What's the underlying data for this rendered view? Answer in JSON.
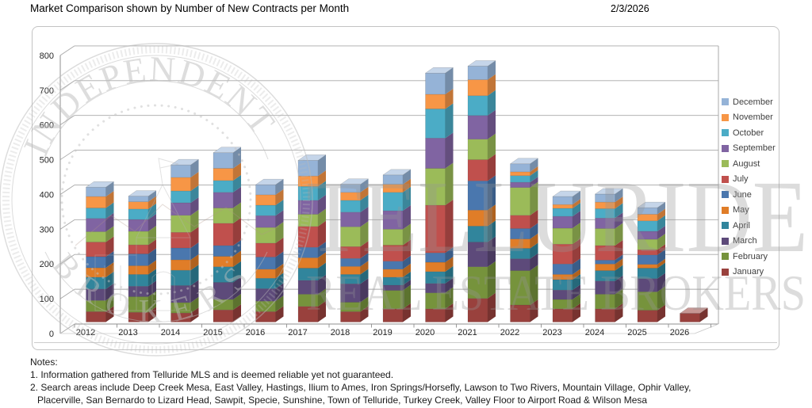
{
  "header": {
    "title": "Market Comparison shown by Number of New Contracts per Month",
    "date": "2/3/2026"
  },
  "chart_data": {
    "type": "bar",
    "stacked": true,
    "title": "Market Comparison shown by Number of New Contracts per Month",
    "categories": [
      "2012",
      "2013",
      "2014",
      "2015",
      "2016",
      "2017",
      "2018",
      "2019",
      "2020",
      "2021",
      "2022",
      "2023",
      "2024",
      "2025",
      "2026"
    ],
    "series": [
      {
        "name": "January",
        "color": "#99413D",
        "values": [
          30,
          28,
          26,
          35,
          30,
          45,
          30,
          38,
          38,
          68,
          49,
          38,
          38,
          34,
          25
        ]
      },
      {
        "name": "February",
        "color": "#76933C",
        "values": [
          32,
          45,
          30,
          30,
          30,
          35,
          27,
          53,
          46,
          91,
          99,
          27,
          42,
          53,
          0
        ]
      },
      {
        "name": "March",
        "color": "#5D4A7A",
        "values": [
          33,
          30,
          49,
          49,
          36,
          40,
          53,
          15,
          27,
          71,
          34,
          27,
          38,
          38,
          0
        ]
      },
      {
        "name": "April",
        "color": "#31859C",
        "values": [
          34,
          34,
          44,
          45,
          30,
          35,
          27,
          23,
          34,
          46,
          30,
          30,
          30,
          30,
          0
        ]
      },
      {
        "name": "May",
        "color": "#E07D28",
        "values": [
          27,
          25,
          30,
          30,
          26,
          30,
          23,
          23,
          27,
          46,
          27,
          15,
          19,
          11,
          0
        ]
      },
      {
        "name": "June",
        "color": "#4A77AE",
        "values": [
          32,
          34,
          34,
          31,
          35,
          30,
          23,
          23,
          27,
          84,
          30,
          30,
          11,
          27,
          0
        ]
      },
      {
        "name": "July",
        "color": "#C0504D",
        "values": [
          42,
          26,
          45,
          64,
          40,
          60,
          34,
          46,
          137,
          61,
          38,
          57,
          42,
          15,
          0
        ]
      },
      {
        "name": "August",
        "color": "#9BBB59",
        "values": [
          30,
          39,
          49,
          44,
          45,
          35,
          57,
          46,
          106,
          59,
          80,
          46,
          49,
          30,
          0
        ]
      },
      {
        "name": "September",
        "color": "#8064A2",
        "values": [
          38,
          34,
          36,
          45,
          34,
          40,
          42,
          53,
          87,
          68,
          15,
          34,
          30,
          23,
          0
        ]
      },
      {
        "name": "October",
        "color": "#4BACC6",
        "values": [
          30,
          30,
          34,
          34,
          30,
          40,
          34,
          53,
          84,
          57,
          19,
          23,
          27,
          30,
          0
        ]
      },
      {
        "name": "November",
        "color": "#F79646",
        "values": [
          33,
          21,
          39,
          35,
          30,
          30,
          23,
          23,
          42,
          46,
          11,
          11,
          19,
          19,
          0
        ]
      },
      {
        "name": "December",
        "color": "#95B3D7",
        "values": [
          27,
          16,
          36,
          45,
          29,
          45,
          23,
          27,
          61,
          39,
          23,
          23,
          23,
          19,
          0
        ]
      }
    ],
    "xlabel": "",
    "ylabel": "",
    "ylim": [
      0,
      800
    ],
    "ytick_step": 100,
    "grid": true,
    "legend_position": "right",
    "legend_order_top_to_bottom": [
      "December",
      "November",
      "October",
      "September",
      "August",
      "July",
      "June",
      "May",
      "April",
      "March",
      "February",
      "January"
    ]
  },
  "watermarks": {
    "seal": {
      "top_text": "INDEPENDENT",
      "bottom_text": "BROKERS"
    },
    "overlay_line1": "TELLURIDE",
    "overlay_line2": "REAL ESTATE BROKERS"
  },
  "notes": {
    "label": "Notes:",
    "line1": "1. Information gathered from Telluride MLS and is deemed reliable yet not guaranteed.",
    "line2": "2. Search areas include Deep Creek Mesa, East Valley, Hastings, Ilium to Ames, Iron Springs/Horsefly, Lawson to Two Rivers, Mountain Village, Ophir Valley,",
    "line3": "Placerville, San Bernardo to Lizard Head, Sawpit, Specie, Sunshine, Town of Telluride, Turkey Creek, Valley Floor to Airport Road & Wilson Mesa"
  }
}
